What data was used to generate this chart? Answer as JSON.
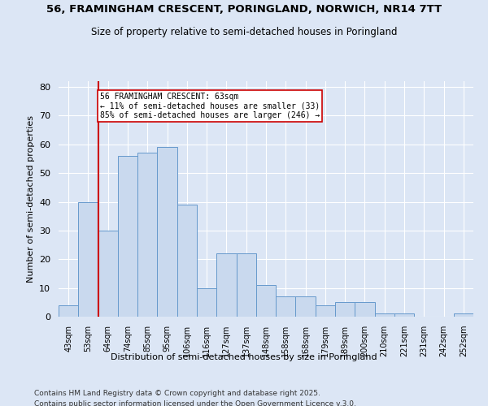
{
  "title": "56, FRAMINGHAM CRESCENT, PORINGLAND, NORWICH, NR14 7TT",
  "subtitle": "Size of property relative to semi-detached houses in Poringland",
  "xlabel": "Distribution of semi-detached houses by size in Poringland",
  "ylabel": "Number of semi-detached properties",
  "bin_labels": [
    "43sqm",
    "53sqm",
    "64sqm",
    "74sqm",
    "85sqm",
    "95sqm",
    "106sqm",
    "116sqm",
    "127sqm",
    "137sqm",
    "148sqm",
    "158sqm",
    "168sqm",
    "179sqm",
    "189sqm",
    "200sqm",
    "210sqm",
    "221sqm",
    "231sqm",
    "242sqm",
    "252sqm"
  ],
  "bar_heights": [
    4,
    40,
    30,
    56,
    57,
    59,
    39,
    10,
    22,
    22,
    11,
    7,
    7,
    4,
    5,
    5,
    1,
    1,
    0,
    0,
    1
  ],
  "bar_color": "#c9d9ee",
  "bar_edge_color": "#6699cc",
  "property_label": "56 FRAMINGHAM CRESCENT: 63sqm",
  "pct_smaller": 11,
  "pct_larger": 85,
  "n_smaller": 33,
  "n_larger": 246,
  "redline_color": "#cc0000",
  "annotation_box_color": "#ffffff",
  "annotation_box_edge": "#cc0000",
  "ylim": [
    0,
    82
  ],
  "yticks": [
    0,
    10,
    20,
    30,
    40,
    50,
    60,
    70,
    80
  ],
  "background_color": "#dce6f5",
  "grid_color": "#ffffff",
  "footer_line1": "Contains HM Land Registry data © Crown copyright and database right 2025.",
  "footer_line2": "Contains public sector information licensed under the Open Government Licence v.3.0."
}
